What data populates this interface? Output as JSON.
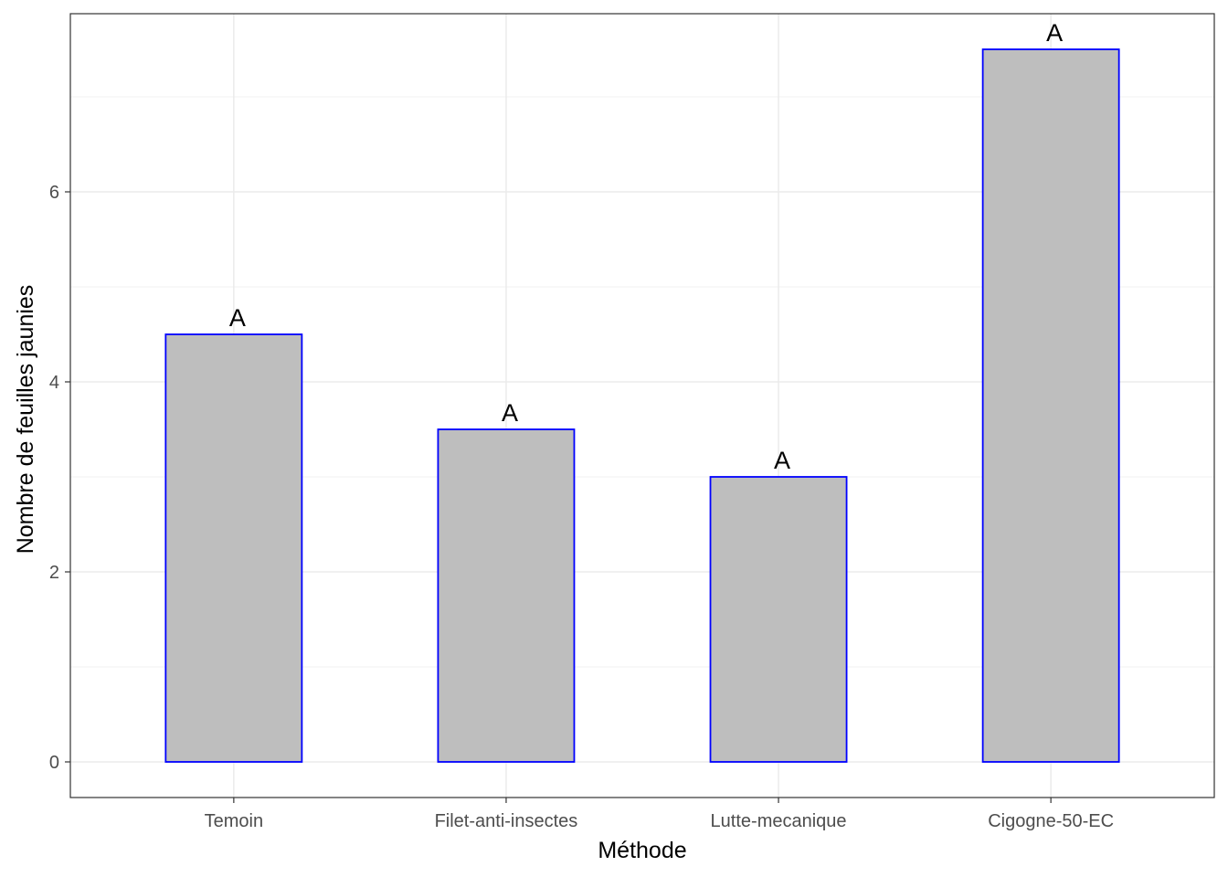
{
  "chart_data": {
    "type": "bar",
    "title": "",
    "xlabel": "Méthode",
    "ylabel": "Nombre de feuilles jaunies",
    "categories": [
      "Temoin",
      "Filet-anti-insectes",
      "Lutte-mecanique",
      "Cigogne-50-EC"
    ],
    "values": [
      4.5,
      3.5,
      3.0,
      7.5
    ],
    "bar_labels": [
      "A",
      "A",
      "A",
      "A"
    ],
    "yticks": [
      0,
      2,
      4,
      6
    ],
    "ylim": [
      -0.375,
      7.875
    ],
    "grid": true,
    "legend": "none",
    "colors": {
      "bar_fill": "#bebebe",
      "bar_stroke": "#0000ff",
      "grid_major": "#ebebeb",
      "grid_minor": "#f2f2f2",
      "panel_border": "#333333"
    }
  }
}
